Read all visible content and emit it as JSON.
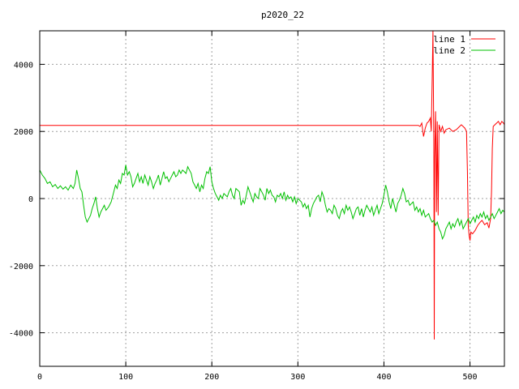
{
  "chart_data": {
    "type": "line",
    "title": "p2020_22",
    "xlabel": "",
    "ylabel": "",
    "xlim": [
      0,
      540
    ],
    "ylim": [
      -5000,
      5000
    ],
    "xticks": [
      0,
      100,
      200,
      300,
      400,
      500
    ],
    "yticks": [
      -4000,
      -2000,
      0,
      2000,
      4000
    ],
    "grid": true,
    "legend_position": "top-right",
    "series": [
      {
        "name": "line 1",
        "color": "#ff0000",
        "points": [
          [
            0,
            2180
          ],
          [
            440,
            2180
          ],
          [
            442,
            2150
          ],
          [
            444,
            2250
          ],
          [
            446,
            1850
          ],
          [
            448,
            2100
          ],
          [
            450,
            2250
          ],
          [
            452,
            2300
          ],
          [
            454,
            2400
          ],
          [
            455,
            2000
          ],
          [
            456,
            3500
          ],
          [
            457,
            5000
          ],
          [
            458,
            1500
          ],
          [
            458.5,
            -4200
          ],
          [
            459,
            1200
          ],
          [
            460,
            2600
          ],
          [
            461,
            -400
          ],
          [
            462,
            2300
          ],
          [
            463,
            -500
          ],
          [
            464,
            2200
          ],
          [
            466,
            2000
          ],
          [
            468,
            2150
          ],
          [
            470,
            1950
          ],
          [
            472,
            2050
          ],
          [
            476,
            2100
          ],
          [
            480,
            2000
          ],
          [
            484,
            2050
          ],
          [
            488,
            2150
          ],
          [
            490,
            2200
          ],
          [
            494,
            2100
          ],
          [
            496,
            2000
          ],
          [
            497,
            800
          ],
          [
            498,
            -800
          ],
          [
            499,
            -1100
          ],
          [
            500,
            -1250
          ],
          [
            501,
            -1000
          ],
          [
            503,
            -1050
          ],
          [
            506,
            -950
          ],
          [
            509,
            -800
          ],
          [
            512,
            -700
          ],
          [
            514,
            -650
          ],
          [
            517,
            -780
          ],
          [
            520,
            -720
          ],
          [
            522,
            -880
          ],
          [
            524,
            -600
          ],
          [
            525,
            200
          ],
          [
            526,
            1500
          ],
          [
            527,
            2150
          ],
          [
            529,
            2200
          ],
          [
            531,
            2250
          ],
          [
            533,
            2300
          ],
          [
            535,
            2200
          ],
          [
            537,
            2300
          ],
          [
            539,
            2250
          ],
          [
            540,
            2200
          ]
        ]
      },
      {
        "name": "line 2",
        "color": "#00c000",
        "points": [
          [
            0,
            850
          ],
          [
            3,
            700
          ],
          [
            6,
            600
          ],
          [
            9,
            450
          ],
          [
            12,
            500
          ],
          [
            15,
            350
          ],
          [
            18,
            420
          ],
          [
            21,
            300
          ],
          [
            24,
            380
          ],
          [
            27,
            280
          ],
          [
            30,
            350
          ],
          [
            33,
            250
          ],
          [
            36,
            400
          ],
          [
            39,
            300
          ],
          [
            41,
            450
          ],
          [
            43,
            850
          ],
          [
            45,
            600
          ],
          [
            47,
            300
          ],
          [
            49,
            200
          ],
          [
            51,
            -200
          ],
          [
            53,
            -550
          ],
          [
            55,
            -700
          ],
          [
            57,
            -600
          ],
          [
            59,
            -500
          ],
          [
            61,
            -300
          ],
          [
            63,
            -150
          ],
          [
            65,
            50
          ],
          [
            67,
            -300
          ],
          [
            69,
            -550
          ],
          [
            71,
            -400
          ],
          [
            73,
            -300
          ],
          [
            75,
            -200
          ],
          [
            77,
            -350
          ],
          [
            80,
            -250
          ],
          [
            83,
            -100
          ],
          [
            86,
            200
          ],
          [
            88,
            400
          ],
          [
            90,
            300
          ],
          [
            92,
            550
          ],
          [
            94,
            450
          ],
          [
            96,
            750
          ],
          [
            98,
            700
          ],
          [
            100,
            1000
          ],
          [
            102,
            700
          ],
          [
            104,
            800
          ],
          [
            106,
            650
          ],
          [
            108,
            350
          ],
          [
            110,
            450
          ],
          [
            112,
            600
          ],
          [
            114,
            750
          ],
          [
            116,
            500
          ],
          [
            118,
            650
          ],
          [
            120,
            450
          ],
          [
            122,
            700
          ],
          [
            124,
            550
          ],
          [
            126,
            400
          ],
          [
            128,
            650
          ],
          [
            130,
            500
          ],
          [
            132,
            300
          ],
          [
            134,
            450
          ],
          [
            136,
            550
          ],
          [
            138,
            700
          ],
          [
            140,
            400
          ],
          [
            142,
            600
          ],
          [
            144,
            800
          ],
          [
            146,
            600
          ],
          [
            148,
            650
          ],
          [
            150,
            500
          ],
          [
            152,
            600
          ],
          [
            154,
            700
          ],
          [
            156,
            800
          ],
          [
            158,
            650
          ],
          [
            160,
            700
          ],
          [
            162,
            850
          ],
          [
            164,
            750
          ],
          [
            166,
            850
          ],
          [
            168,
            800
          ],
          [
            170,
            750
          ],
          [
            172,
            950
          ],
          [
            174,
            850
          ],
          [
            176,
            750
          ],
          [
            178,
            500
          ],
          [
            180,
            400
          ],
          [
            182,
            300
          ],
          [
            184,
            450
          ],
          [
            186,
            200
          ],
          [
            188,
            400
          ],
          [
            190,
            300
          ],
          [
            192,
            600
          ],
          [
            194,
            800
          ],
          [
            196,
            750
          ],
          [
            198,
            950
          ],
          [
            200,
            500
          ],
          [
            202,
            300
          ],
          [
            204,
            150
          ],
          [
            206,
            50
          ],
          [
            208,
            -50
          ],
          [
            210,
            100
          ],
          [
            212,
            0
          ],
          [
            214,
            150
          ],
          [
            216,
            100
          ],
          [
            218,
            50
          ],
          [
            220,
            200
          ],
          [
            222,
            300
          ],
          [
            224,
            100
          ],
          [
            226,
            0
          ],
          [
            228,
            300
          ],
          [
            230,
            250
          ],
          [
            232,
            200
          ],
          [
            234,
            -200
          ],
          [
            236,
            -50
          ],
          [
            238,
            -150
          ],
          [
            240,
            100
          ],
          [
            242,
            350
          ],
          [
            244,
            200
          ],
          [
            246,
            50
          ],
          [
            248,
            -100
          ],
          [
            250,
            150
          ],
          [
            252,
            50
          ],
          [
            254,
            0
          ],
          [
            256,
            300
          ],
          [
            258,
            200
          ],
          [
            260,
            100
          ],
          [
            262,
            -50
          ],
          [
            264,
            300
          ],
          [
            266,
            150
          ],
          [
            268,
            250
          ],
          [
            270,
            100
          ],
          [
            272,
            50
          ],
          [
            274,
            -100
          ],
          [
            276,
            100
          ],
          [
            278,
            50
          ],
          [
            280,
            150
          ],
          [
            282,
            0
          ],
          [
            284,
            200
          ],
          [
            286,
            -50
          ],
          [
            288,
            100
          ],
          [
            290,
            0
          ],
          [
            292,
            50
          ],
          [
            294,
            -100
          ],
          [
            296,
            50
          ],
          [
            298,
            -150
          ],
          [
            300,
            0
          ],
          [
            302,
            -50
          ],
          [
            304,
            -100
          ],
          [
            306,
            -250
          ],
          [
            308,
            -150
          ],
          [
            310,
            -300
          ],
          [
            312,
            -200
          ],
          [
            314,
            -550
          ],
          [
            316,
            -300
          ],
          [
            318,
            -150
          ],
          [
            320,
            -50
          ],
          [
            322,
            50
          ],
          [
            324,
            100
          ],
          [
            326,
            -100
          ],
          [
            328,
            200
          ],
          [
            330,
            50
          ],
          [
            332,
            -200
          ],
          [
            334,
            -400
          ],
          [
            336,
            -300
          ],
          [
            338,
            -350
          ],
          [
            340,
            -450
          ],
          [
            342,
            -200
          ],
          [
            344,
            -300
          ],
          [
            346,
            -500
          ],
          [
            348,
            -600
          ],
          [
            350,
            -400
          ],
          [
            352,
            -300
          ],
          [
            354,
            -450
          ],
          [
            356,
            -200
          ],
          [
            358,
            -350
          ],
          [
            360,
            -250
          ],
          [
            362,
            -400
          ],
          [
            364,
            -600
          ],
          [
            366,
            -450
          ],
          [
            368,
            -300
          ],
          [
            370,
            -250
          ],
          [
            372,
            -500
          ],
          [
            374,
            -300
          ],
          [
            376,
            -550
          ],
          [
            378,
            -350
          ],
          [
            380,
            -200
          ],
          [
            382,
            -300
          ],
          [
            384,
            -400
          ],
          [
            386,
            -250
          ],
          [
            388,
            -500
          ],
          [
            390,
            -350
          ],
          [
            392,
            -200
          ],
          [
            394,
            -450
          ],
          [
            396,
            -300
          ],
          [
            398,
            -150
          ],
          [
            400,
            100
          ],
          [
            402,
            400
          ],
          [
            404,
            200
          ],
          [
            406,
            -100
          ],
          [
            408,
            -300
          ],
          [
            410,
            0
          ],
          [
            412,
            -200
          ],
          [
            414,
            -400
          ],
          [
            416,
            -150
          ],
          [
            418,
            -50
          ],
          [
            420,
            100
          ],
          [
            422,
            300
          ],
          [
            424,
            150
          ],
          [
            426,
            -100
          ],
          [
            428,
            -50
          ],
          [
            430,
            -200
          ],
          [
            432,
            -150
          ],
          [
            434,
            -100
          ],
          [
            436,
            -350
          ],
          [
            438,
            -250
          ],
          [
            440,
            -400
          ],
          [
            442,
            -300
          ],
          [
            444,
            -500
          ],
          [
            446,
            -350
          ],
          [
            448,
            -550
          ],
          [
            450,
            -500
          ],
          [
            452,
            -450
          ],
          [
            454,
            -600
          ],
          [
            456,
            -700
          ],
          [
            458,
            -650
          ],
          [
            460,
            -800
          ],
          [
            462,
            -700
          ],
          [
            464,
            -900
          ],
          [
            466,
            -1000
          ],
          [
            468,
            -1200
          ],
          [
            470,
            -1100
          ],
          [
            472,
            -900
          ],
          [
            474,
            -800
          ],
          [
            476,
            -700
          ],
          [
            478,
            -900
          ],
          [
            480,
            -750
          ],
          [
            482,
            -850
          ],
          [
            484,
            -700
          ],
          [
            486,
            -600
          ],
          [
            488,
            -800
          ],
          [
            490,
            -650
          ],
          [
            492,
            -900
          ],
          [
            494,
            -800
          ],
          [
            496,
            -700
          ],
          [
            498,
            -600
          ],
          [
            500,
            -750
          ],
          [
            502,
            -650
          ],
          [
            504,
            -550
          ],
          [
            506,
            -700
          ],
          [
            508,
            -500
          ],
          [
            510,
            -600
          ],
          [
            512,
            -450
          ],
          [
            514,
            -550
          ],
          [
            516,
            -400
          ],
          [
            518,
            -600
          ],
          [
            520,
            -500
          ],
          [
            522,
            -650
          ],
          [
            524,
            -550
          ],
          [
            526,
            -450
          ],
          [
            528,
            -600
          ],
          [
            530,
            -500
          ],
          [
            532,
            -400
          ],
          [
            534,
            -300
          ],
          [
            536,
            -450
          ],
          [
            538,
            -350
          ],
          [
            540,
            -400
          ]
        ]
      }
    ]
  }
}
